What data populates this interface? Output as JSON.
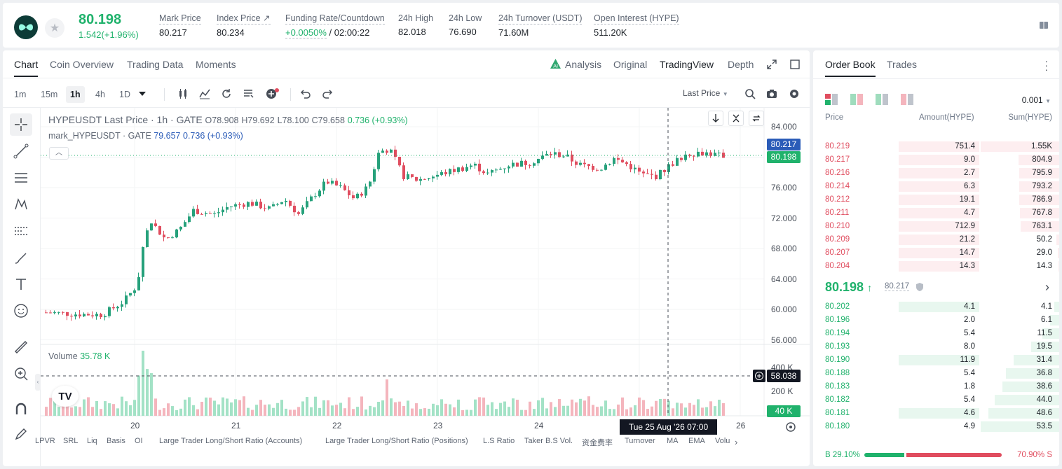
{
  "ticker": {
    "last_price": "80.198",
    "change": "1.542(+1.96%)",
    "stats": [
      {
        "label": "Mark Price",
        "value": "80.217"
      },
      {
        "label": "Index Price",
        "value": "80.234"
      },
      {
        "label": "Funding Rate/Countdown",
        "value_green": "+0.0050%",
        "value_rest": " / 02:00:22"
      },
      {
        "label": "24h High",
        "value": "82.018"
      },
      {
        "label": "24h Low",
        "value": "76.690"
      },
      {
        "label": "24h Turnover (USDT)",
        "value": "71.60M"
      },
      {
        "label": "Open Interest (HYPE)",
        "value": "511.20K"
      }
    ],
    "colors": {
      "up": "#20b26c",
      "down": "#e04d5f"
    }
  },
  "chart_panel": {
    "tabs": [
      "Chart",
      "Coin Overview",
      "Trading Data",
      "Moments"
    ],
    "views": [
      "Analysis",
      "Original",
      "TradingView",
      "Depth"
    ],
    "timeframes": [
      "1m",
      "15m",
      "1h",
      "4h",
      "1D"
    ],
    "price_type": "Last Price",
    "legend": {
      "symbol": "HYPEUSDT Last Price · 1h · GATE",
      "o": "O78.908",
      "h": "H79.692",
      "l": "L78.100",
      "c": "C79.658",
      "chg": "0.736 (+0.93%)",
      "mark_label": "mark_HYPEUSDT · GATE",
      "mark_value": "79.657  0.736 (+0.93%)"
    },
    "volume_label": "Volume",
    "volume_value": "35.78 K",
    "price_axis": [
      "84.000",
      "80.000",
      "76.000",
      "72.000",
      "68.000",
      "64.000",
      "60.000",
      "56.000"
    ],
    "volume_axis": [
      "400 K",
      "200 K"
    ],
    "tags": {
      "mark": "80.217",
      "last": "80.198",
      "cross": "58.038",
      "vol": "40 K"
    },
    "time_axis": [
      "20",
      "21",
      "22",
      "23",
      "24",
      "26"
    ],
    "crosshair_time": "Tue 25 Aug '26   07:00",
    "indicators": [
      "LPVR",
      "SRL",
      "Liq",
      "Basis",
      "OI",
      "Large Trader Long/Short Ratio (Accounts)",
      "Large Trader Long/Short Ratio (Positions)",
      "L.S Ratio",
      "Taker B.S Vol.",
      "资金费率",
      "Turnover",
      "MA",
      "EMA",
      "Volu"
    ],
    "tv_logo": "TV"
  },
  "chart_data": {
    "type": "candlestick",
    "ylim": [
      56,
      84
    ],
    "x": [
      "20",
      "21",
      "22",
      "23",
      "24",
      "26"
    ],
    "close_path": [
      [
        0,
        59.6
      ],
      [
        40,
        59.4
      ],
      [
        80,
        59.3
      ],
      [
        110,
        61
      ],
      [
        130,
        63.2
      ],
      [
        140,
        69.5
      ],
      [
        150,
        71.5
      ],
      [
        170,
        69.2
      ],
      [
        190,
        70.5
      ],
      [
        210,
        73
      ],
      [
        240,
        72.5
      ],
      [
        260,
        73.5
      ],
      [
        290,
        74
      ],
      [
        320,
        73.2
      ],
      [
        340,
        74.5
      ],
      [
        360,
        72.5
      ],
      [
        380,
        74.8
      ],
      [
        400,
        76.8
      ],
      [
        420,
        76
      ],
      [
        440,
        74.5
      ],
      [
        460,
        76.2
      ],
      [
        475,
        80.8
      ],
      [
        490,
        81
      ],
      [
        510,
        77.5
      ],
      [
        530,
        77
      ],
      [
        560,
        77.7
      ],
      [
        590,
        78.5
      ],
      [
        610,
        79
      ],
      [
        630,
        77.8
      ],
      [
        660,
        79
      ],
      [
        690,
        79.3
      ],
      [
        720,
        80.5
      ],
      [
        740,
        80.2
      ],
      [
        760,
        79
      ],
      [
        790,
        78.5
      ],
      [
        810,
        79.8
      ],
      [
        830,
        79
      ],
      [
        850,
        77.7
      ],
      [
        870,
        77.5
      ],
      [
        895,
        79.3
      ],
      [
        915,
        80.5
      ],
      [
        940,
        80.6
      ],
      [
        960,
        80.2
      ]
    ],
    "volume": "series of hourly bars; spikes near 20 (~490K) and 22 (~300K)"
  },
  "order_book": {
    "tabs": [
      "Order Book",
      "Trades"
    ],
    "precision": "0.001",
    "headers": [
      "Price",
      "Amount(HYPE)",
      "Sum(HYPE)"
    ],
    "asks": [
      {
        "price": "80.219",
        "amount": "751.4",
        "sum": "1.55K",
        "af": 1.0,
        "sf": 1.0
      },
      {
        "price": "80.217",
        "amount": "9.0",
        "sum": "804.9",
        "af": 1.0,
        "sf": 0.52
      },
      {
        "price": "80.216",
        "amount": "2.7",
        "sum": "795.9",
        "af": 1.0,
        "sf": 0.51
      },
      {
        "price": "80.214",
        "amount": "6.3",
        "sum": "793.2",
        "af": 1.0,
        "sf": 0.51
      },
      {
        "price": "80.212",
        "amount": "19.1",
        "sum": "786.9",
        "af": 1.0,
        "sf": 0.51
      },
      {
        "price": "80.211",
        "amount": "4.7",
        "sum": "767.8",
        "af": 1.0,
        "sf": 0.5
      },
      {
        "price": "80.210",
        "amount": "712.9",
        "sum": "763.1",
        "af": 1.0,
        "sf": 0.49
      },
      {
        "price": "80.209",
        "amount": "21.2",
        "sum": "50.2",
        "af": 1.0,
        "sf": 0.04
      },
      {
        "price": "80.207",
        "amount": "14.7",
        "sum": "29.0",
        "af": 1.0,
        "sf": 0.02
      },
      {
        "price": "80.204",
        "amount": "14.3",
        "sum": "14.3",
        "af": 1.0,
        "sf": 0.01
      }
    ],
    "mid": {
      "price": "80.198",
      "mark": "80.217"
    },
    "bids": [
      {
        "price": "80.202",
        "amount": "4.1",
        "sum": "4.1",
        "af": 1.0,
        "sf": 0.06
      },
      {
        "price": "80.196",
        "amount": "2.0",
        "sum": "6.1",
        "af": 0.0,
        "sf": 0.12
      },
      {
        "price": "80.194",
        "amount": "5.4",
        "sum": "11.5",
        "af": 0.0,
        "sf": 0.21
      },
      {
        "price": "80.193",
        "amount": "8.0",
        "sum": "19.5",
        "af": 0.0,
        "sf": 0.36
      },
      {
        "price": "80.190",
        "amount": "11.9",
        "sum": "31.4",
        "af": 1.0,
        "sf": 0.58
      },
      {
        "price": "80.188",
        "amount": "5.4",
        "sum": "36.8",
        "af": 0.0,
        "sf": 0.68
      },
      {
        "price": "80.183",
        "amount": "1.8",
        "sum": "38.6",
        "af": 0.0,
        "sf": 0.72
      },
      {
        "price": "80.182",
        "amount": "5.4",
        "sum": "44.0",
        "af": 0.0,
        "sf": 0.82
      },
      {
        "price": "80.181",
        "amount": "4.6",
        "sum": "48.6",
        "af": 1.0,
        "sf": 0.9
      },
      {
        "price": "80.180",
        "amount": "4.9",
        "sum": "53.5",
        "af": 0.0,
        "sf": 1.0
      }
    ],
    "buy_ratio": "B 29.10%",
    "sell_ratio": "70.90% S",
    "buy_fraction": 0.291
  }
}
